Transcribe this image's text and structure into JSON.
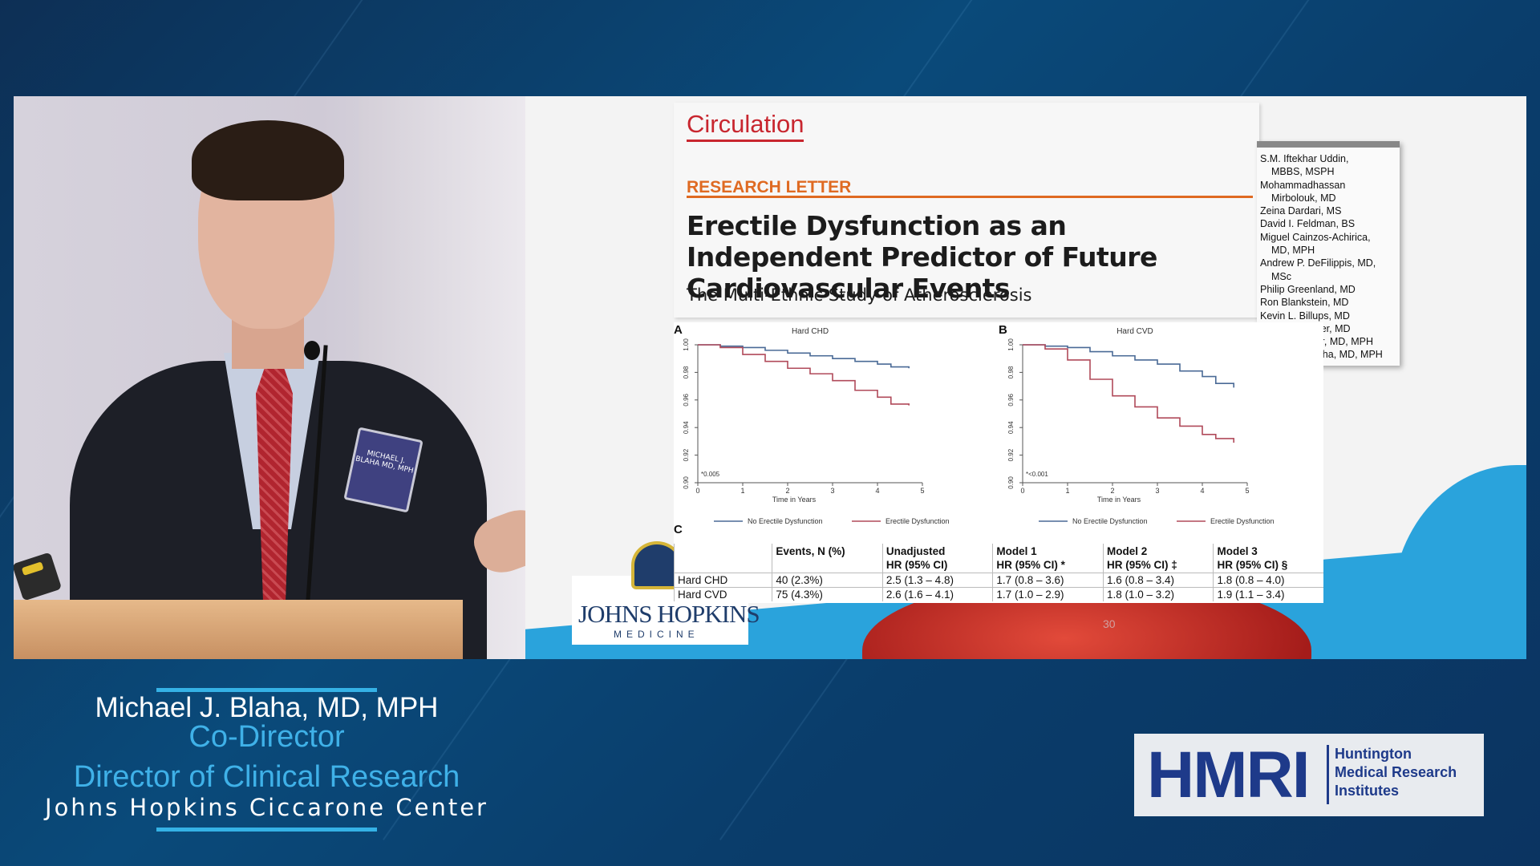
{
  "speaker_video": {
    "badge_text": "MICHAEL J. BLAHA MD, MPH"
  },
  "slide": {
    "journal": "Circulation",
    "section": "RESEARCH LETTER",
    "title": "Erectile Dysfunction as an Independent Predictor of Future Cardiovascular Events",
    "subtitle": "The Multi-Ethnic Study of Atherosclerosis",
    "authors": [
      "S.M. Iftekhar Uddin,",
      "   MBBS, MSPH",
      "Mohammadhassan",
      "   Mirbolouk, MD",
      "Zeina Dardari, MS",
      "David I. Feldman, BS",
      "Miguel Cainzos-Achirica,",
      "   MD, MPH",
      "Andrew P. DeFilippis, MD,",
      "   MSc",
      "Philip Greenland, MD",
      "Ron Blankstein, MD",
      "Kevin L. Billups, MD",
      "Martin M. Miner, MD",
      "Khurram Nasir, MD, MPH",
      "Michael J. Blaha, MD, MPH"
    ],
    "logo_name": "JOHNS HOPKINS",
    "logo_sub": "MEDICINE",
    "bg_number": "30",
    "panel_c_letter": "C",
    "table": {
      "headers": [
        [
          "",
          ""
        ],
        [
          "Events, N (%)",
          ""
        ],
        [
          "Unadjusted",
          "HR (95% CI)"
        ],
        [
          "Model 1",
          "HR (95% CI) *"
        ],
        [
          "Model 2",
          "HR (95% CI) ‡"
        ],
        [
          "Model 3",
          "HR (95% CI) §"
        ]
      ],
      "rows": [
        [
          "Hard CHD",
          "40 (2.3%)",
          "2.5 (1.3 – 4.8)",
          "1.7 (0.8 – 3.6)",
          "1.6 (0.8 – 3.4)",
          "1.8 (0.8 – 4.0)"
        ],
        [
          "Hard CVD",
          "75 (4.3%)",
          "2.6 (1.6 – 4.1)",
          "1.7 (1.0 – 2.9)",
          "1.8 (1.0 – 3.2)",
          "1.9 (1.1 – 3.4)"
        ]
      ]
    }
  },
  "chart_data": [
    {
      "type": "line",
      "panel": "A",
      "title": "Hard CHD",
      "xlabel": "Time in Years",
      "ylabel": "",
      "xlim": [
        0,
        5
      ],
      "ylim": [
        0.9,
        1.0
      ],
      "xticks": [
        "0",
        "1",
        "2",
        "3",
        "4",
        "5"
      ],
      "yticks": [
        "0.90",
        "0.92",
        "0.94",
        "0.96",
        "0.98",
        "1.00"
      ],
      "annotation": "*0.005",
      "legend_position": "bottom",
      "series": [
        {
          "name": "No Erectile Dysfunction",
          "color": "#4a6a96",
          "x": [
            0,
            0.5,
            1,
            1.5,
            2,
            2.5,
            3,
            3.5,
            4,
            4.3,
            4.7
          ],
          "y": [
            1.0,
            0.999,
            0.998,
            0.996,
            0.994,
            0.992,
            0.99,
            0.988,
            0.986,
            0.984,
            0.983
          ]
        },
        {
          "name": "Erectile Dysfunction",
          "color": "#b04a5a",
          "x": [
            0,
            0.5,
            1,
            1.5,
            2,
            2.5,
            3,
            3.5,
            4,
            4.3,
            4.7
          ],
          "y": [
            1.0,
            0.998,
            0.993,
            0.988,
            0.983,
            0.979,
            0.974,
            0.967,
            0.962,
            0.957,
            0.956
          ]
        }
      ]
    },
    {
      "type": "line",
      "panel": "B",
      "title": "Hard CVD",
      "xlabel": "Time in Years",
      "ylabel": "",
      "xlim": [
        0,
        5
      ],
      "ylim": [
        0.9,
        1.0
      ],
      "xticks": [
        "0",
        "1",
        "2",
        "3",
        "4",
        "5"
      ],
      "yticks": [
        "0.90",
        "0.92",
        "0.94",
        "0.96",
        "0.98",
        "1.00"
      ],
      "annotation": "*<0.001",
      "legend_position": "bottom",
      "series": [
        {
          "name": "No Erectile Dysfunction",
          "color": "#4a6a96",
          "x": [
            0,
            0.5,
            1,
            1.5,
            2,
            2.5,
            3,
            3.5,
            4,
            4.3,
            4.7
          ],
          "y": [
            1.0,
            0.999,
            0.998,
            0.995,
            0.992,
            0.989,
            0.986,
            0.981,
            0.977,
            0.972,
            0.969
          ]
        },
        {
          "name": "Erectile Dysfunction",
          "color": "#b04a5a",
          "x": [
            0,
            0.5,
            1,
            1.5,
            2,
            2.5,
            3,
            3.5,
            4,
            4.3,
            4.7
          ],
          "y": [
            1.0,
            0.997,
            0.989,
            0.975,
            0.963,
            0.955,
            0.947,
            0.941,
            0.935,
            0.932,
            0.929
          ]
        }
      ]
    }
  ],
  "lower_third": {
    "name": "Michael J. Blaha, MD, MPH",
    "role1": "Co-Director",
    "role2": "Director of Clinical Research",
    "org": "Johns Hopkins Ciccarone Center"
  },
  "hmri": {
    "big": "HMRI",
    "line1": "Huntington",
    "line2": "Medical Research",
    "line3": "Institutes"
  },
  "colors": {
    "background": "#0a4a7a",
    "accent_cyan": "#3fb1e8",
    "journal_red": "#c8262f",
    "research_orange": "#df6a22",
    "hmri_blue": "#1e3a8a"
  }
}
